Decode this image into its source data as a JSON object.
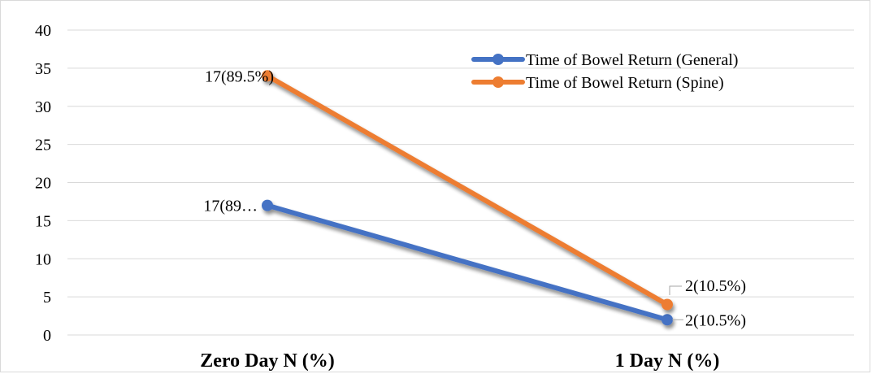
{
  "chart_data": {
    "type": "line",
    "categories": [
      "Zero Day N (%)",
      "1 Day N (%)"
    ],
    "ylim": [
      0,
      40
    ],
    "yticks": [
      0,
      5,
      10,
      15,
      20,
      25,
      30,
      35,
      40
    ],
    "grid": true,
    "legend_position": "top-right",
    "series": [
      {
        "name": "Time of Bowel Return (General)",
        "values": [
          17,
          2
        ],
        "labels": [
          "17(89…",
          "2(10.5%)"
        ],
        "color": "#4472c4"
      },
      {
        "name": "Time of Bowel Return (Spine)",
        "values": [
          34,
          4
        ],
        "labels": [
          "17(89.5%)",
          "2(10.5%)"
        ],
        "color": "#ed7d31"
      }
    ]
  }
}
